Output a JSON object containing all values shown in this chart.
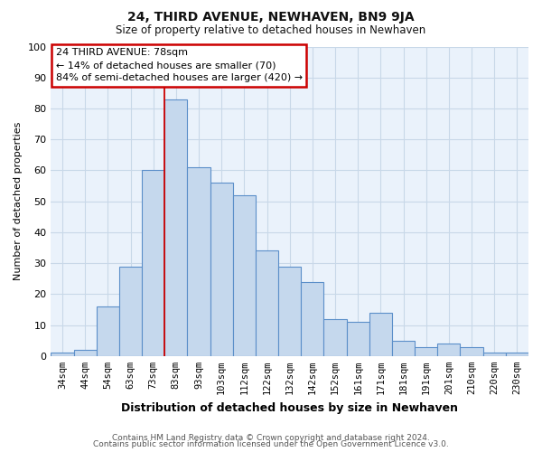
{
  "title": "24, THIRD AVENUE, NEWHAVEN, BN9 9JA",
  "subtitle": "Size of property relative to detached houses in Newhaven",
  "xlabel": "Distribution of detached houses by size in Newhaven",
  "ylabel": "Number of detached properties",
  "footer_line1": "Contains HM Land Registry data © Crown copyright and database right 2024.",
  "footer_line2": "Contains public sector information licensed under the Open Government Licence v3.0.",
  "categories": [
    "34sqm",
    "44sqm",
    "54sqm",
    "63sqm",
    "73sqm",
    "83sqm",
    "93sqm",
    "103sqm",
    "112sqm",
    "122sqm",
    "132sqm",
    "142sqm",
    "152sqm",
    "161sqm",
    "171sqm",
    "181sqm",
    "191sqm",
    "201sqm",
    "210sqm",
    "220sqm",
    "230sqm"
  ],
  "values": [
    1,
    2,
    16,
    29,
    60,
    83,
    61,
    56,
    52,
    34,
    29,
    24,
    12,
    11,
    14,
    5,
    3,
    4,
    3,
    1,
    1
  ],
  "bar_color": "#c5d8ed",
  "bar_edge_color": "#5b8fc9",
  "annotation_title": "24 THIRD AVENUE: 78sqm",
  "annotation_line1": "← 14% of detached houses are smaller (70)",
  "annotation_line2": "84% of semi-detached houses are larger (420) →",
  "annotation_box_color": "#ffffff",
  "annotation_box_edge_color": "#cc0000",
  "red_line_index": 4.5,
  "ylim": [
    0,
    100
  ],
  "yticks": [
    0,
    10,
    20,
    30,
    40,
    50,
    60,
    70,
    80,
    90,
    100
  ],
  "background_color": "#ffffff",
  "plot_bg_color": "#eaf2fb",
  "grid_color": "#c8d8e8",
  "title_fontsize": 10,
  "subtitle_fontsize": 8.5,
  "xlabel_fontsize": 9,
  "ylabel_fontsize": 8,
  "tick_fontsize": 7.5,
  "footer_fontsize": 6.5
}
